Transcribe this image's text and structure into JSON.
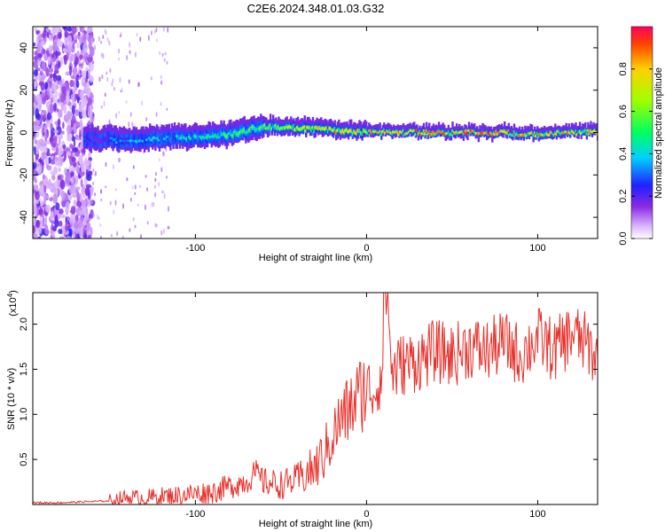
{
  "title": "C2E6.2024.348.01.03.G32",
  "chart_data": [
    {
      "type": "heatmap",
      "xlabel": "Height of straight line (km)",
      "ylabel": "Frequency (Hz)",
      "xlim": [
        -195,
        135
      ],
      "ylim": [
        -50,
        50
      ],
      "xticks": [
        -100,
        0,
        100
      ],
      "yticks": [
        -40,
        -20,
        0,
        20,
        40
      ],
      "colorbar": {
        "label": "Normalized spectral amplitude",
        "ticks": [
          0.0,
          0.2,
          0.4,
          0.6,
          0.8
        ],
        "range": [
          0,
          1
        ]
      },
      "ridge": {
        "description": "energy concentrated near 0 Hz",
        "x": [
          -160,
          -140,
          -120,
          -100,
          -80,
          -60,
          -40,
          -20,
          0,
          20,
          40,
          60,
          80,
          100,
          120,
          135
        ],
        "center_hz": [
          -3,
          -4,
          -3,
          -2,
          -1,
          3,
          2,
          1,
          0,
          0,
          0,
          0,
          0,
          -1,
          0,
          0
        ],
        "peak_amplitude": [
          0.3,
          0.4,
          0.45,
          0.5,
          0.55,
          0.6,
          0.75,
          0.85,
          0.85,
          0.9,
          0.9,
          0.9,
          0.95,
          0.85,
          0.85,
          0.8
        ]
      }
    },
    {
      "type": "line",
      "xlabel": "Height of straight line (km)",
      "ylabel": "SNR (10 * v/v)",
      "scale_label": "(x10",
      "scale_exp": "4",
      "scale_close": ")",
      "xlim": [
        -195,
        135
      ],
      "ylim": [
        0,
        2.35
      ],
      "xticks": [
        -100,
        0,
        100
      ],
      "yticks": [
        0.5,
        1.0,
        1.5,
        2.0
      ],
      "color": "#e8302a",
      "series": [
        {
          "name": "SNR",
          "x": [
            -195,
            -180,
            -165,
            -150,
            -140,
            -130,
            -120,
            -110,
            -100,
            -90,
            -80,
            -70,
            -65,
            -60,
            -50,
            -40,
            -30,
            -25,
            -20,
            -15,
            -10,
            -5,
            0,
            5,
            10,
            12,
            15,
            20,
            30,
            40,
            50,
            60,
            70,
            80,
            90,
            100,
            110,
            120,
            130,
            135
          ],
          "values": [
            0.02,
            0.02,
            0.03,
            0.04,
            0.08,
            0.07,
            0.09,
            0.1,
            0.12,
            0.14,
            0.2,
            0.26,
            0.35,
            0.25,
            0.22,
            0.28,
            0.4,
            0.55,
            0.75,
            0.95,
            1.05,
            1.2,
            1.3,
            1.25,
            1.55,
            2.35,
            1.45,
            1.55,
            1.6,
            1.7,
            1.65,
            1.75,
            1.7,
            1.8,
            1.65,
            1.85,
            1.7,
            1.9,
            1.75,
            1.6
          ]
        }
      ]
    }
  ]
}
